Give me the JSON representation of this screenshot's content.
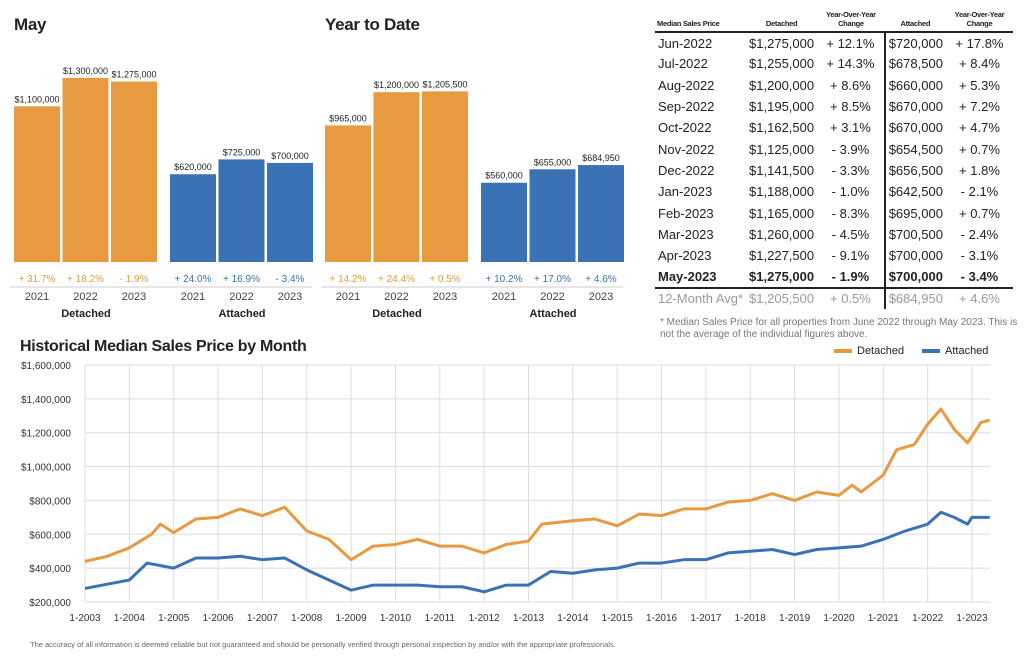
{
  "colors": {
    "detached": "#E89A41",
    "attached": "#3B72B6"
  },
  "chart_data": [
    {
      "type": "bar",
      "title": "May",
      "groups": [
        {
          "label": "Detached",
          "series": "detached",
          "categories": [
            "2021",
            "2022",
            "2023"
          ],
          "values": [
            1100000,
            1300000,
            1275000
          ],
          "value_labels": [
            "$1,100,000",
            "$1,300,000",
            "$1,275,000"
          ],
          "changes": [
            "+ 31.7%",
            "+ 18.2%",
            "- 1.9%"
          ]
        },
        {
          "label": "Attached",
          "series": "attached",
          "categories": [
            "2021",
            "2022",
            "2023"
          ],
          "values": [
            620000,
            725000,
            700000
          ],
          "value_labels": [
            "$620,000",
            "$725,000",
            "$700,000"
          ],
          "changes": [
            "+ 24.0%",
            "+ 16.9%",
            "- 3.4%"
          ]
        }
      ]
    },
    {
      "type": "bar",
      "title": "Year to Date",
      "groups": [
        {
          "label": "Detached",
          "series": "detached",
          "categories": [
            "2021",
            "2022",
            "2023"
          ],
          "values": [
            965000,
            1200000,
            1205500
          ],
          "value_labels": [
            "$965,000",
            "$1,200,000",
            "$1,205,500"
          ],
          "changes": [
            "+ 14.2%",
            "+ 24.4%",
            "+ 0.5%"
          ]
        },
        {
          "label": "Attached",
          "series": "attached",
          "categories": [
            "2021",
            "2022",
            "2023"
          ],
          "values": [
            560000,
            655000,
            684950
          ],
          "value_labels": [
            "$560,000",
            "$655,000",
            "$684,950"
          ],
          "changes": [
            "+ 10.2%",
            "+ 17.0%",
            "+ 4.6%"
          ]
        }
      ]
    },
    {
      "type": "table",
      "title": "Median Sales Price",
      "headers": [
        "Median Sales Price",
        "Detached",
        "Year-Over-Year Change",
        "Attached",
        "Year-Over-Year Change"
      ],
      "rows": [
        [
          "Jun-2022",
          "$1,275,000",
          "+ 12.1%",
          "$720,000",
          "+ 17.8%"
        ],
        [
          "Jul-2022",
          "$1,255,000",
          "+ 14.3%",
          "$678,500",
          "+ 8.4%"
        ],
        [
          "Aug-2022",
          "$1,200,000",
          "+ 8.6%",
          "$660,000",
          "+ 5.3%"
        ],
        [
          "Sep-2022",
          "$1,195,000",
          "+ 8.5%",
          "$670,000",
          "+ 7.2%"
        ],
        [
          "Oct-2022",
          "$1,162,500",
          "+ 3.1%",
          "$670,000",
          "+ 4.7%"
        ],
        [
          "Nov-2022",
          "$1,125,000",
          "- 3.9%",
          "$654,500",
          "+ 0.7%"
        ],
        [
          "Dec-2022",
          "$1,141,500",
          "- 3.3%",
          "$656,500",
          "+ 1.8%"
        ],
        [
          "Jan-2023",
          "$1,188,000",
          "- 1.0%",
          "$642,500",
          "- 2.1%"
        ],
        [
          "Feb-2023",
          "$1,165,000",
          "- 8.3%",
          "$695,000",
          "+ 0.7%"
        ],
        [
          "Mar-2023",
          "$1,260,000",
          "- 4.5%",
          "$700,500",
          "- 2.4%"
        ],
        [
          "Apr-2023",
          "$1,227,500",
          "- 9.1%",
          "$700,000",
          "- 3.1%"
        ],
        [
          "May-2023",
          "$1,275,000",
          "- 1.9%",
          "$700,000",
          "- 3.4%"
        ],
        [
          "12-Month Avg*",
          "$1,205,500",
          "+ 0.5%",
          "$684,950",
          "+ 4.6%"
        ]
      ],
      "note": "* Median Sales Price for all properties from June 2022 through May 2023. This is not the average of the individual figures above."
    },
    {
      "type": "line",
      "title": "Historical Median Sales Price by Month",
      "ylim": [
        200000,
        1600000
      ],
      "yticks": [
        "$200,000",
        "$400,000",
        "$600,000",
        "$800,000",
        "$1,000,000",
        "$1,200,000",
        "$1,400,000",
        "$1,600,000"
      ],
      "xticks": [
        "1-2003",
        "1-2004",
        "1-2005",
        "1-2006",
        "1-2007",
        "1-2008",
        "1-2009",
        "1-2010",
        "1-2011",
        "1-2012",
        "1-2013",
        "1-2014",
        "1-2015",
        "1-2016",
        "1-2017",
        "1-2018",
        "1-2019",
        "1-2020",
        "1-2021",
        "1-2022",
        "1-2023"
      ],
      "legend": "top-right",
      "series": [
        {
          "name": "Detached",
          "key": "detached",
          "x": [
            2003,
            2003.5,
            2004,
            2004.5,
            2004.7,
            2005,
            2005.5,
            2006,
            2006.5,
            2007,
            2007.5,
            2008,
            2008.5,
            2009,
            2009.5,
            2010,
            2010.5,
            2011,
            2011.5,
            2012,
            2012.5,
            2013,
            2013.3,
            2014,
            2014.5,
            2015,
            2015.5,
            2016,
            2016.5,
            2017,
            2017.5,
            2018,
            2018.5,
            2019,
            2019.5,
            2020,
            2020.3,
            2020.5,
            2021,
            2021.3,
            2021.7,
            2022,
            2022.3,
            2022.6,
            2022.9,
            2023.2,
            2023.4
          ],
          "y": [
            440000,
            470000,
            520000,
            600000,
            660000,
            610000,
            690000,
            700000,
            750000,
            710000,
            760000,
            620000,
            570000,
            450000,
            530000,
            540000,
            570000,
            530000,
            530000,
            490000,
            540000,
            560000,
            660000,
            680000,
            690000,
            650000,
            720000,
            710000,
            750000,
            750000,
            790000,
            800000,
            840000,
            800000,
            850000,
            830000,
            890000,
            850000,
            950000,
            1100000,
            1130000,
            1250000,
            1340000,
            1220000,
            1140000,
            1260000,
            1275000
          ]
        },
        {
          "name": "Attached",
          "key": "attached",
          "x": [
            2003,
            2004,
            2004.4,
            2005,
            2005.5,
            2006,
            2006.5,
            2007,
            2007.5,
            2008,
            2008.5,
            2009,
            2009.5,
            2010,
            2010.5,
            2011,
            2011.5,
            2012,
            2012.5,
            2013,
            2013.5,
            2014,
            2014.5,
            2015,
            2015.5,
            2016,
            2016.5,
            2017,
            2017.5,
            2018,
            2018.5,
            2019,
            2019.5,
            2020,
            2020.5,
            2021,
            2021.5,
            2022,
            2022.3,
            2022.6,
            2022.9,
            2023,
            2023.4
          ],
          "y": [
            280000,
            330000,
            430000,
            400000,
            460000,
            460000,
            470000,
            450000,
            460000,
            390000,
            330000,
            270000,
            300000,
            300000,
            300000,
            290000,
            290000,
            260000,
            300000,
            300000,
            380000,
            370000,
            390000,
            400000,
            430000,
            430000,
            450000,
            450000,
            490000,
            500000,
            510000,
            480000,
            510000,
            520000,
            530000,
            570000,
            620000,
            660000,
            730000,
            700000,
            660000,
            700000,
            700000
          ]
        }
      ]
    }
  ],
  "footer": "The accuracy of all information is deemed reliable but not guaranteed and should be personally verified through personal inspection by and/or with the appropriate professionals."
}
